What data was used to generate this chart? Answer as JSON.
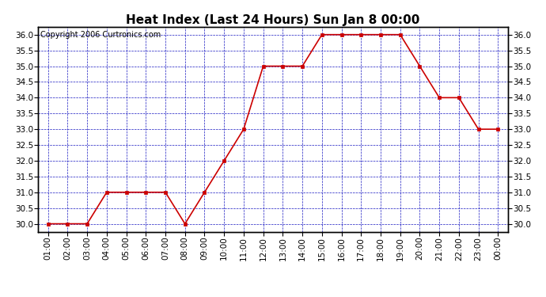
{
  "title": "Heat Index (Last 24 Hours) Sun Jan 8 00:00",
  "copyright": "Copyright 2006 Curtronics.com",
  "hours": [
    "01:00",
    "02:00",
    "03:00",
    "04:00",
    "05:00",
    "06:00",
    "07:00",
    "08:00",
    "09:00",
    "10:00",
    "11:00",
    "12:00",
    "13:00",
    "14:00",
    "15:00",
    "16:00",
    "17:00",
    "18:00",
    "19:00",
    "20:00",
    "21:00",
    "22:00",
    "23:00",
    "00:00"
  ],
  "values": [
    30.0,
    30.0,
    30.0,
    31.0,
    31.0,
    31.0,
    31.0,
    30.0,
    31.0,
    32.0,
    33.0,
    35.0,
    35.0,
    35.0,
    36.0,
    36.0,
    36.0,
    36.0,
    36.0,
    35.0,
    34.0,
    34.0,
    33.0,
    33.0
  ],
  "ylim_min": 29.75,
  "ylim_max": 36.25,
  "yticks": [
    30.0,
    30.5,
    31.0,
    31.5,
    32.0,
    32.5,
    33.0,
    33.5,
    34.0,
    34.5,
    35.0,
    35.5,
    36.0
  ],
  "line_color": "#cc0000",
  "marker_color": "#cc0000",
  "grid_color": "#0000bb",
  "bg_color": "#ffffff",
  "plot_bg_color": "#ffffff",
  "title_fontsize": 11,
  "copyright_fontsize": 7,
  "tick_fontsize": 7.5
}
